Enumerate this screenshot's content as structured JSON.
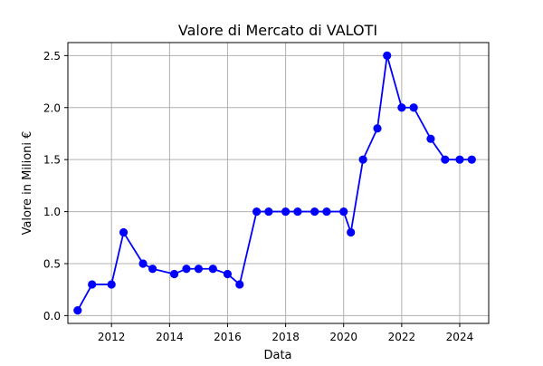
{
  "chart_data": {
    "type": "line",
    "title": "Valore di Mercato di VALOTI",
    "xlabel": "Data",
    "ylabel": "Valore in Milioni €",
    "grid": true,
    "marker": "circle",
    "line_color": "#0000ff",
    "xlim": [
      "2010-07-01",
      "2024-12-31"
    ],
    "ylim": [
      -0.075,
      2.625
    ],
    "x_ticks": [
      {
        "label": "2012",
        "date": "2012-01-01"
      },
      {
        "label": "2014",
        "date": "2014-01-01"
      },
      {
        "label": "2016",
        "date": "2016-01-01"
      },
      {
        "label": "2018",
        "date": "2018-01-01"
      },
      {
        "label": "2020",
        "date": "2020-01-01"
      },
      {
        "label": "2022",
        "date": "2022-01-01"
      },
      {
        "label": "2024",
        "date": "2024-01-01"
      }
    ],
    "y_ticks": [
      {
        "label": "0.0",
        "value": 0.0
      },
      {
        "label": "0.5",
        "value": 0.5
      },
      {
        "label": "1.0",
        "value": 1.0
      },
      {
        "label": "1.5",
        "value": 1.5
      },
      {
        "label": "2.0",
        "value": 2.0
      },
      {
        "label": "2.5",
        "value": 2.5
      }
    ],
    "series": [
      {
        "points": [
          {
            "x": "2010-11-01",
            "y": 0.05
          },
          {
            "x": "2011-05-01",
            "y": 0.3
          },
          {
            "x": "2012-01-01",
            "y": 0.3
          },
          {
            "x": "2012-06-01",
            "y": 0.8
          },
          {
            "x": "2013-02-01",
            "y": 0.5
          },
          {
            "x": "2013-06-01",
            "y": 0.45
          },
          {
            "x": "2014-03-01",
            "y": 0.4
          },
          {
            "x": "2014-08-01",
            "y": 0.45
          },
          {
            "x": "2015-01-01",
            "y": 0.45
          },
          {
            "x": "2015-07-01",
            "y": 0.45
          },
          {
            "x": "2016-01-01",
            "y": 0.4
          },
          {
            "x": "2016-06-01",
            "y": 0.3
          },
          {
            "x": "2017-01-01",
            "y": 1.0
          },
          {
            "x": "2017-06-01",
            "y": 1.0
          },
          {
            "x": "2018-01-01",
            "y": 1.0
          },
          {
            "x": "2018-06-01",
            "y": 1.0
          },
          {
            "x": "2019-01-01",
            "y": 1.0
          },
          {
            "x": "2019-06-01",
            "y": 1.0
          },
          {
            "x": "2020-01-01",
            "y": 1.0
          },
          {
            "x": "2020-04-01",
            "y": 0.8
          },
          {
            "x": "2020-09-01",
            "y": 1.5
          },
          {
            "x": "2021-03-01",
            "y": 1.8
          },
          {
            "x": "2021-07-01",
            "y": 2.5
          },
          {
            "x": "2022-01-01",
            "y": 2.0
          },
          {
            "x": "2022-06-01",
            "y": 2.0
          },
          {
            "x": "2023-01-01",
            "y": 1.7
          },
          {
            "x": "2023-07-01",
            "y": 1.5
          },
          {
            "x": "2024-01-01",
            "y": 1.5
          },
          {
            "x": "2024-06-01",
            "y": 1.5
          }
        ]
      }
    ]
  }
}
